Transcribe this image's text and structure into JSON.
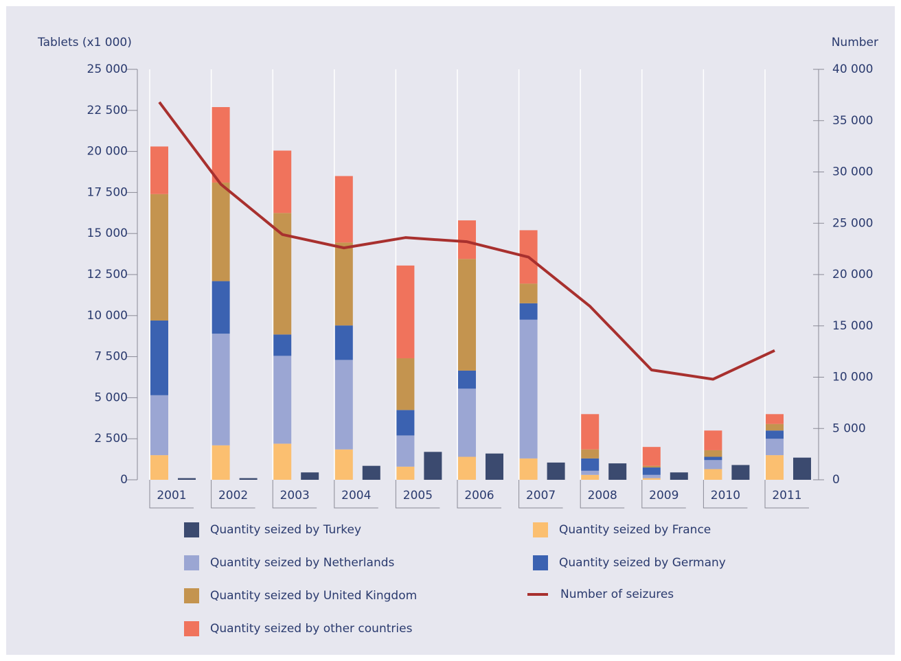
{
  "chart_data": {
    "type": "bar",
    "y_label": "Tablets (x1 000)",
    "y2_label": "Number",
    "categories": [
      "2001",
      "2002",
      "2003",
      "2004",
      "2005",
      "2006",
      "2007",
      "2008",
      "2009",
      "2010",
      "2011"
    ],
    "series": [
      {
        "name": "Quantity seized by Turkey",
        "color": "#3b4a6f",
        "stacked": false,
        "values": [
          100,
          100,
          450,
          850,
          1700,
          1600,
          1050,
          1000,
          450,
          900,
          1350
        ]
      },
      {
        "name": "Quantity seized by France",
        "color": "#fbbf70",
        "stacked": true,
        "values": [
          1500,
          2100,
          2200,
          1850,
          800,
          1400,
          1300,
          300,
          100,
          650,
          1500
        ]
      },
      {
        "name": "Quantity seized by Netherlands",
        "color": "#9ba6d3",
        "stacked": true,
        "values": [
          3650,
          6800,
          5350,
          5450,
          1900,
          4150,
          8450,
          250,
          200,
          550,
          1000
        ]
      },
      {
        "name": "Quantity seized by Germany",
        "color": "#3b62b1",
        "stacked": true,
        "values": [
          4550,
          3200,
          1300,
          2100,
          1550,
          1100,
          1000,
          750,
          450,
          200,
          500
        ]
      },
      {
        "name": "Quantity seized by United Kingdom",
        "color": "#c4944f",
        "stacked": true,
        "values": [
          7700,
          6000,
          7400,
          5050,
          3150,
          6800,
          1200,
          550,
          100,
          400,
          400
        ]
      },
      {
        "name": "Quantity seized by other countries",
        "color": "#f0735c",
        "stacked": true,
        "values": [
          2900,
          4600,
          3800,
          4050,
          5650,
          2350,
          3250,
          2150,
          1150,
          1200,
          600
        ]
      },
      {
        "name": "Number of seizures",
        "color": "#a8302e",
        "type": "line",
        "axis": "y2",
        "values": [
          36800,
          28800,
          23900,
          22600,
          23600,
          23200,
          21700,
          16900,
          10700,
          9800,
          12600
        ]
      }
    ],
    "ylim": [
      0,
      25000
    ],
    "yticks": [
      0,
      {
        "value": 2500,
        "label": "2 500"
      },
      {
        "value": 5000,
        "label": "5 000"
      },
      {
        "value": 7500,
        "label": "7 500"
      },
      {
        "value": 10000,
        "label": "10 000"
      },
      {
        "value": 12500,
        "label": "12 500"
      },
      {
        "value": 15000,
        "label": "15 000"
      },
      {
        "value": 17500,
        "label": "17 500"
      },
      {
        "value": 20000,
        "label": "20 000"
      },
      {
        "value": 22500,
        "label": "22 500"
      },
      {
        "value": 25000,
        "label": "25 000"
      }
    ],
    "y2lim": [
      0,
      40000
    ],
    "y2ticks": [
      0,
      {
        "value": 5000,
        "label": "5 000"
      },
      {
        "value": 10000,
        "label": "10 000"
      },
      {
        "value": 15000,
        "label": "15 000"
      },
      {
        "value": 20000,
        "label": "20 000"
      },
      {
        "value": 25000,
        "label": "25 000"
      },
      {
        "value": 30000,
        "label": "30 000"
      },
      {
        "value": 35000,
        "label": "35 000"
      },
      {
        "value": 40000,
        "label": "40 000"
      }
    ]
  }
}
